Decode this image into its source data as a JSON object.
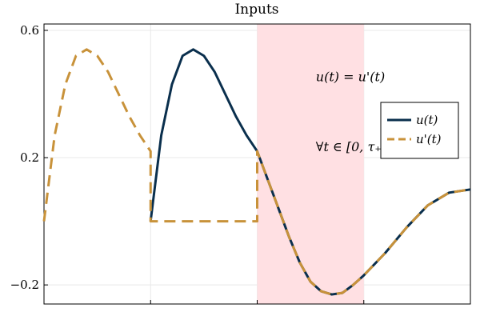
{
  "chart_data": {
    "type": "line",
    "title": "Inputs",
    "xlabel": "",
    "ylabel": "",
    "xlim": [
      0,
      4
    ],
    "ylim": [
      -0.26,
      0.62
    ],
    "x_ticks": [
      1,
      2,
      3,
      4
    ],
    "y_ticks": [
      -0.2,
      0.2,
      0.6
    ],
    "y_tick_labels": [
      "−0.2",
      "0.2",
      "0.6"
    ],
    "grid": true,
    "legend_position": "right",
    "shaded_region": {
      "x_start": 2,
      "x_end": 3,
      "color": "#ffe0e3"
    },
    "annotations": [
      {
        "text": "u(t) = u'(t)",
        "x": 2.55,
        "y": 0.44
      },
      {
        "text": "∀t ∈ [0, τ₊]",
        "x": 2.55,
        "y": 0.22
      }
    ],
    "series": [
      {
        "name": "u(t)",
        "color": "#0a2f4d",
        "dash": "solid",
        "x": [
          1.0,
          1.1,
          1.2,
          1.3,
          1.4,
          1.5,
          1.6,
          1.7,
          1.8,
          1.9,
          2.0,
          2.1,
          2.2,
          2.3,
          2.4,
          2.5,
          2.6,
          2.7,
          2.8,
          2.9,
          3.0,
          3.2,
          3.4,
          3.6,
          3.8,
          4.0
        ],
        "values": [
          0.0,
          0.27,
          0.43,
          0.52,
          0.54,
          0.52,
          0.47,
          0.4,
          0.33,
          0.27,
          0.22,
          0.13,
          0.04,
          -0.05,
          -0.13,
          -0.19,
          -0.22,
          -0.23,
          -0.225,
          -0.2,
          -0.17,
          -0.1,
          -0.02,
          0.05,
          0.09,
          0.1
        ]
      },
      {
        "name": "u'(t)",
        "color": "#c8923a",
        "dash": "dashed",
        "x": [
          0.0,
          0.1,
          0.2,
          0.3,
          0.4,
          0.5,
          0.6,
          0.7,
          0.8,
          0.9,
          1.0,
          1.0,
          1.5,
          2.0,
          2.0,
          2.1,
          2.2,
          2.3,
          2.4,
          2.5,
          2.6,
          2.7,
          2.8,
          2.9,
          3.0,
          3.2,
          3.4,
          3.6,
          3.8,
          4.0
        ],
        "values": [
          0.0,
          0.27,
          0.43,
          0.52,
          0.54,
          0.52,
          0.47,
          0.4,
          0.33,
          0.27,
          0.22,
          0.0,
          0.0,
          0.0,
          0.22,
          0.13,
          0.04,
          -0.05,
          -0.13,
          -0.19,
          -0.22,
          -0.23,
          -0.225,
          -0.2,
          -0.17,
          -0.1,
          -0.02,
          0.05,
          0.09,
          0.1
        ]
      }
    ]
  }
}
